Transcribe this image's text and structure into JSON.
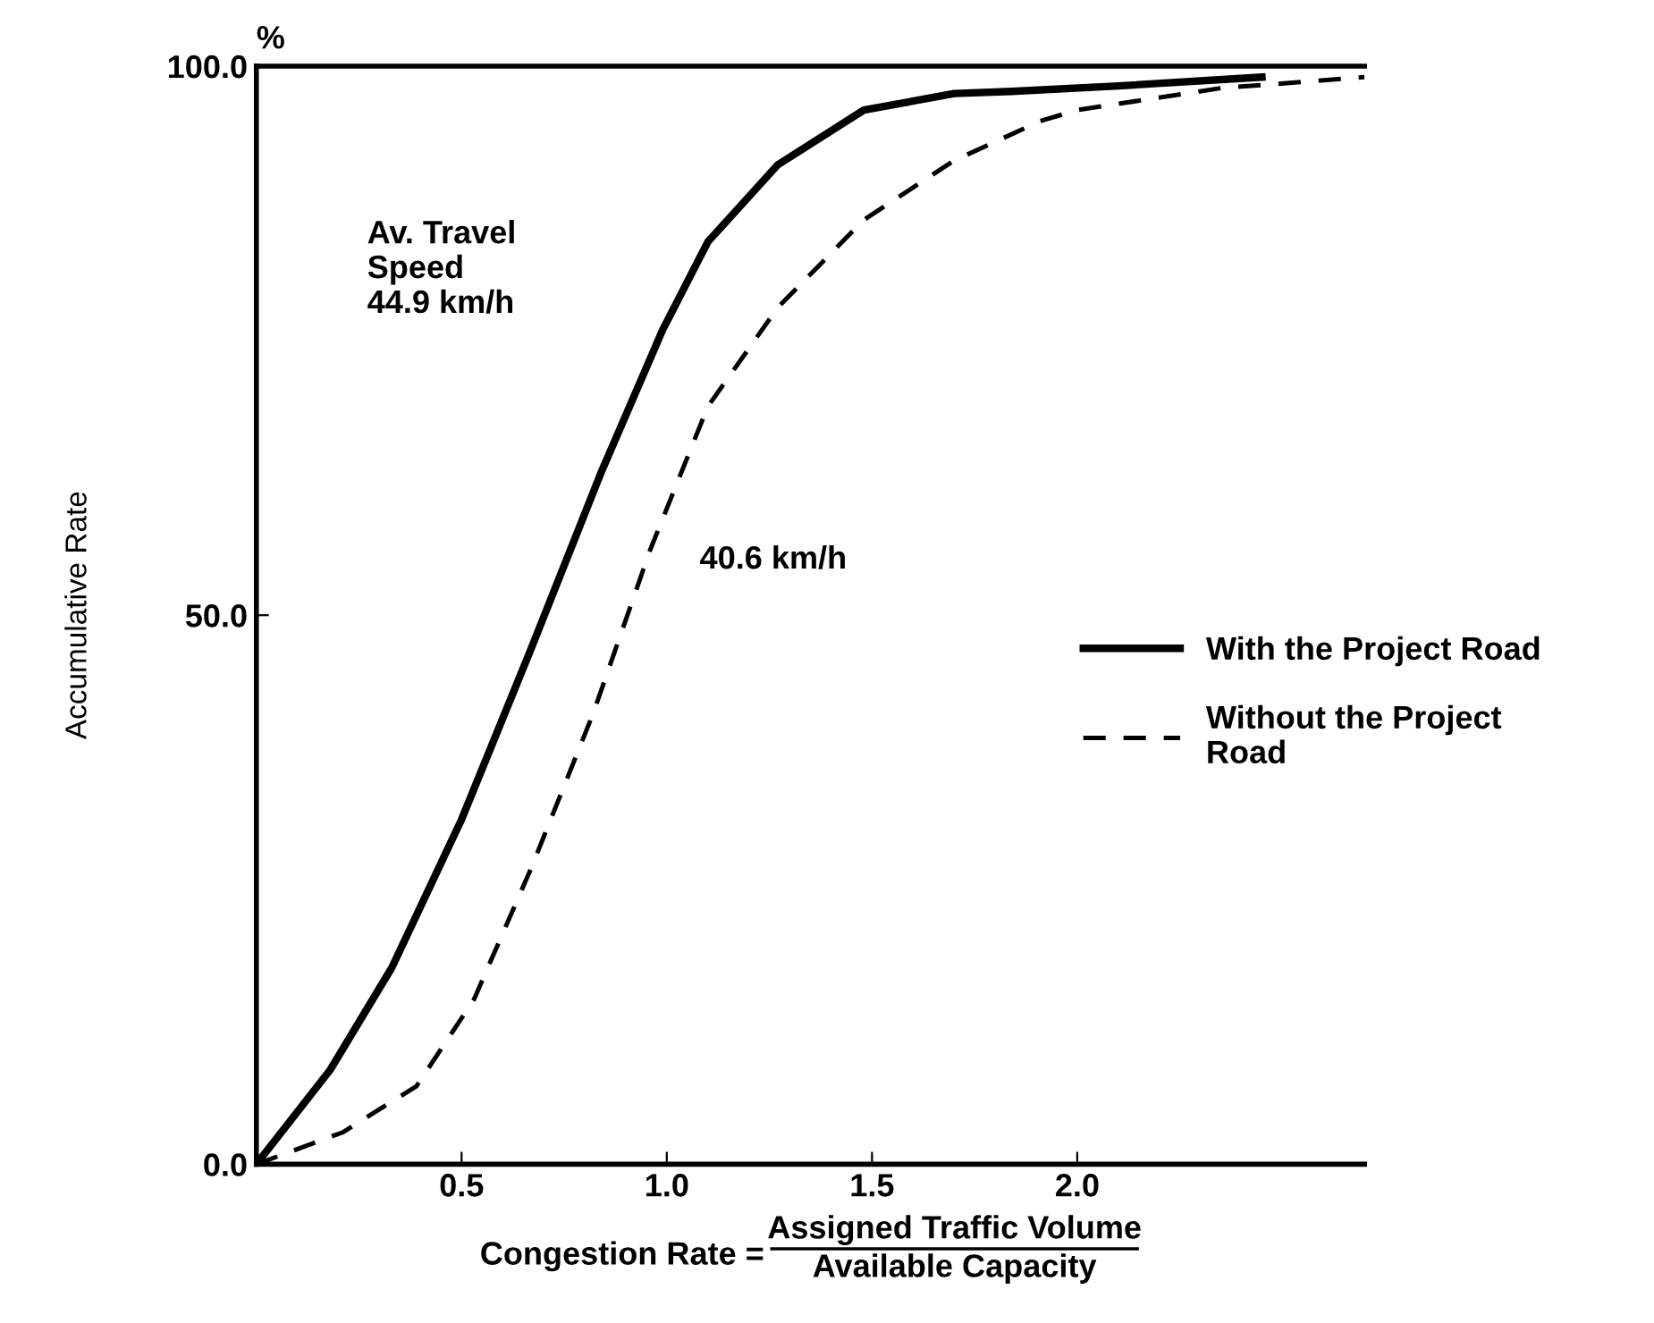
{
  "chart_data": {
    "type": "line",
    "xlabel": "Congestion Rate =",
    "ylabel": "Accumulative Rate",
    "xlim": [
      0,
      2.7
    ],
    "ylim": [
      0,
      100
    ],
    "xticks": [
      0.5,
      {
        "value": 1.0,
        "label": "1.0"
      },
      1.5,
      {
        "value": 2.0,
        "label": "2.0"
      }
    ],
    "yticks": [
      {
        "value": 0,
        "label": "0.0"
      },
      {
        "value": 50,
        "label": "50.0"
      },
      {
        "value": 100,
        "label": "100.0"
      }
    ],
    "grid": false,
    "legend": "right",
    "marker": "none",
    "annotations": [
      "Av. Travel\nSpeed\n44.9 km/h",
      "40.6 km/h",
      "Assigned Traffic Volume",
      "Available Capacity",
      "%"
    ],
    "series": [
      {
        "name": "With the Project Road",
        "color": "#000000",
        "line_style": "solid",
        "x": [
          0,
          0.18,
          0.33,
          0.5,
          0.67,
          0.84,
          0.99,
          1.1,
          1.27,
          1.48,
          1.7,
          1.84,
          2.1,
          2.45
        ],
        "values": [
          0,
          8.6,
          17.9,
          31.4,
          47,
          63,
          76,
          84,
          91,
          96,
          97.5,
          97.7,
          98.2,
          99
        ]
      },
      {
        "name": "Without the Project\nRoad",
        "color": "#000000",
        "line_style": "dashed",
        "x": [
          0,
          0.21,
          0.39,
          0.53,
          0.67,
          0.82,
          0.96,
          1.1,
          1.27,
          1.48,
          1.7,
          1.91,
          2.0,
          2.35,
          2.7
        ],
        "values": [
          0,
          2.9,
          7.1,
          15,
          27,
          41,
          56,
          69,
          78,
          86,
          91.4,
          95,
          96,
          98,
          99
        ]
      }
    ]
  }
}
